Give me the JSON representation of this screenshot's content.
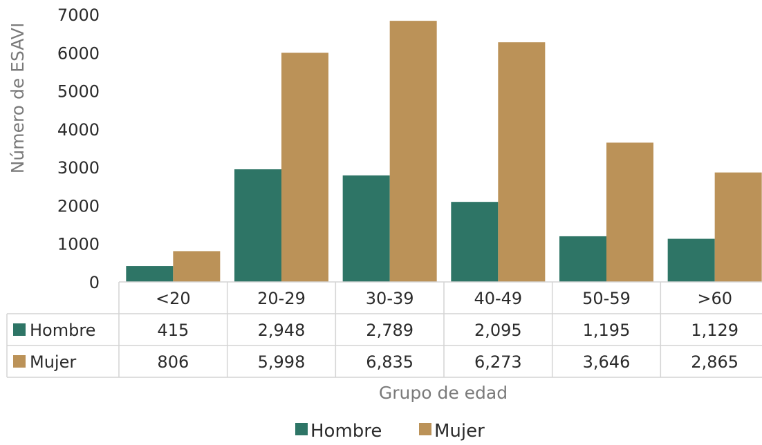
{
  "chart_data": {
    "type": "bar",
    "categories": [
      "<20",
      "20-29",
      "30-39",
      "40-49",
      "50-59",
      ">60"
    ],
    "series": [
      {
        "name": "Hombre",
        "color": "#2e7566",
        "values": [
          415,
          2948,
          2789,
          2095,
          1195,
          1129
        ],
        "labels": [
          "415",
          "2,948",
          "2,789",
          "2,095",
          "1,195",
          "1,129"
        ]
      },
      {
        "name": "Mujer",
        "color": "#bb9258",
        "values": [
          806,
          5998,
          6835,
          6273,
          3646,
          2865
        ],
        "labels": [
          "806",
          "5,998",
          "6,835",
          "6,273",
          "3,646",
          "2,865"
        ]
      }
    ],
    "title": "",
    "xlabel": "Grupo de edad",
    "ylabel": "Número de ESAVI",
    "ylim": [
      0,
      7000
    ],
    "yticks": [
      0,
      1000,
      2000,
      3000,
      4000,
      5000,
      6000,
      7000
    ],
    "grid": false,
    "legend": "bottom-center",
    "data_table": true
  }
}
